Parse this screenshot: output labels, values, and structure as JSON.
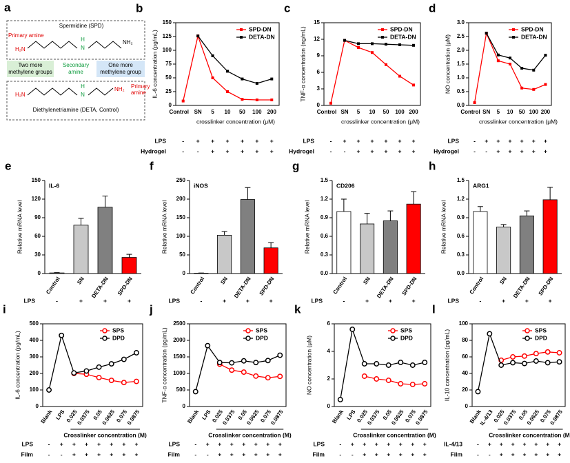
{
  "diagram": {
    "label": "a",
    "spd_title": "Spermidine (SPD)",
    "primary_amine_top": "Primary amine",
    "h2n_top": "H₂N",
    "nh2_top": "NH₂",
    "h_top": "H",
    "n_top": "N",
    "two_more": [
      "Two more",
      "methylene groups"
    ],
    "secondary_amine": [
      "Secondary",
      "amine"
    ],
    "one_more": [
      "One more",
      "methylene group"
    ],
    "h2n_bottom": "H₂N",
    "n_bottom": "N",
    "h_bottom": "H",
    "nh2_bottom": "NH₂",
    "primary_amine_bottom": [
      "Primary",
      "amine"
    ],
    "deta_title": "Diethylenetriamine (DETA, Control)"
  },
  "chart_data": [
    {
      "type": "line",
      "panel": "b",
      "ylabel": "IL-6 concentration (pg/mL)",
      "xlabel": "crosslinker concentration (μM)",
      "marker": "square",
      "legend": "upper right",
      "categories": [
        "Control",
        "SN",
        "5",
        "10",
        "50",
        "100",
        "200"
      ],
      "series": [
        {
          "name": "SPD-DN",
          "color": "#ff0000",
          "values": [
            8,
            126,
            50,
            25,
            11,
            10,
            10
          ]
        },
        {
          "name": "DETA-DN",
          "color": "#000000",
          "values": [
            null,
            126,
            90,
            62,
            48,
            40,
            48
          ]
        }
      ],
      "ylim": [
        0,
        150
      ],
      "yticks": [
        0,
        25,
        50,
        75,
        100,
        125,
        150
      ],
      "rows": [
        {
          "label": "LPS",
          "values": [
            "-",
            "+",
            "+",
            "+",
            "+",
            "+",
            "+"
          ]
        },
        {
          "label": "Hydrogel",
          "values": [
            "-",
            "-",
            "+",
            "+",
            "+",
            "+",
            "+"
          ]
        }
      ]
    },
    {
      "type": "line",
      "panel": "c",
      "ylabel": "TNF-α concentration (ng/mL)",
      "xlabel": "crosslinker concentration (μM)",
      "marker": "square",
      "legend": "upper right",
      "categories": [
        "Control",
        "SN",
        "5",
        "10",
        "50",
        "100",
        "200"
      ],
      "series": [
        {
          "name": "SPD-DN",
          "color": "#ff0000",
          "values": [
            0.4,
            11.8,
            10.5,
            9.6,
            7.4,
            5.3,
            3.7
          ]
        },
        {
          "name": "DETA-DN",
          "color": "#000000",
          "values": [
            null,
            11.8,
            11.2,
            11.2,
            11.1,
            11.0,
            10.9
          ]
        }
      ],
      "ylim": [
        0,
        15
      ],
      "yticks": [
        0,
        3,
        6,
        9,
        12,
        15
      ],
      "rows": [
        {
          "label": "LPS",
          "values": [
            "-",
            "+",
            "+",
            "+",
            "+",
            "+",
            "+"
          ]
        },
        {
          "label": "Hydrogel",
          "values": [
            "-",
            "-",
            "+",
            "+",
            "+",
            "+",
            "+"
          ]
        }
      ]
    },
    {
      "type": "line",
      "panel": "d",
      "ylabel": "NO concentration (μM)",
      "xlabel": "crosslinker concentration (μM)",
      "marker": "square",
      "legend": "upper right",
      "categories": [
        "Control",
        "SN",
        "5",
        "10",
        "50",
        "100",
        "200"
      ],
      "series": [
        {
          "name": "SPD-DN",
          "color": "#ff0000",
          "values": [
            0.1,
            2.62,
            1.62,
            1.5,
            0.63,
            0.58,
            0.76
          ]
        },
        {
          "name": "DETA-DN",
          "color": "#000000",
          "values": [
            null,
            2.62,
            1.83,
            1.72,
            1.35,
            1.28,
            1.82
          ]
        }
      ],
      "ylim": [
        0,
        3
      ],
      "yticks": [
        {
          "value": 0,
          "label": "0.0"
        },
        0.5,
        {
          "value": 1,
          "label": "1.0"
        },
        1.5,
        {
          "value": 2,
          "label": "2.0"
        },
        2.5,
        {
          "value": 3,
          "label": "3.0"
        }
      ],
      "rows": [
        {
          "label": "LPS",
          "values": [
            "-",
            "+",
            "+",
            "+",
            "+",
            "+",
            "+"
          ]
        },
        {
          "label": "Hydrogel",
          "values": [
            "-",
            "-",
            "+",
            "+",
            "+",
            "+",
            "+"
          ]
        }
      ]
    },
    {
      "type": "bar",
      "panel": "e",
      "title": "IL-6",
      "ylabel": "Relative mRNA level",
      "categories": [
        "Control",
        "SN",
        "DETA-DN",
        "SPD-DN"
      ],
      "values": [
        1,
        78,
        107,
        26
      ],
      "errors": [
        0.5,
        11,
        18,
        5
      ],
      "colors": [
        "#ffffff",
        "#c8c8c8",
        "#808080",
        "#ff0000"
      ],
      "ylim": [
        0,
        150
      ],
      "yticks": [
        0,
        30,
        60,
        90,
        120,
        150
      ],
      "rows": [
        {
          "label": "LPS",
          "values": [
            "-",
            "+",
            "+",
            "+"
          ]
        }
      ]
    },
    {
      "type": "bar",
      "panel": "f",
      "title": "iNOS",
      "ylabel": "Relative mRNA level",
      "categories": [
        "Control",
        "SN",
        "DETA-DN",
        "SPD-DN"
      ],
      "values": [
        1,
        103,
        199,
        69
      ],
      "errors": [
        0.5,
        10,
        32,
        14
      ],
      "colors": [
        "#ffffff",
        "#c8c8c8",
        "#808080",
        "#ff0000"
      ],
      "ylim": [
        0,
        250
      ],
      "yticks": [
        0,
        50,
        100,
        150,
        200,
        250
      ],
      "rows": [
        {
          "label": "LPS",
          "values": [
            "-",
            "+",
            "+",
            "+"
          ]
        }
      ]
    },
    {
      "type": "bar",
      "panel": "g",
      "title": "CD206",
      "ylabel": "Relative mRNA level",
      "categories": [
        "Control",
        "SN",
        "DETA-DN",
        "SPD-DN"
      ],
      "values": [
        1.0,
        0.8,
        0.85,
        1.12
      ],
      "errors": [
        0.2,
        0.17,
        0.16,
        0.2
      ],
      "colors": [
        "#ffffff",
        "#c8c8c8",
        "#808080",
        "#ff0000"
      ],
      "ylim": [
        0,
        1.5
      ],
      "yticks": [
        {
          "value": 0,
          "label": "0.0"
        },
        0.3,
        0.6,
        0.9,
        1.2,
        1.5
      ],
      "rows": [
        {
          "label": "LPS",
          "values": [
            "-",
            "+",
            "+",
            "+"
          ]
        }
      ]
    },
    {
      "type": "bar",
      "panel": "h",
      "title": "ARG1",
      "ylabel": "Relative mRNA level",
      "categories": [
        "Control",
        "SN",
        "DETA-DN",
        "SPD-DN"
      ],
      "values": [
        1.0,
        0.75,
        0.93,
        1.19
      ],
      "errors": [
        0.08,
        0.04,
        0.08,
        0.2
      ],
      "colors": [
        "#ffffff",
        "#c8c8c8",
        "#808080",
        "#ff0000"
      ],
      "ylim": [
        0,
        1.5
      ],
      "yticks": [
        {
          "value": 0,
          "label": "0.0"
        },
        0.3,
        0.6,
        0.9,
        1.2,
        1.5
      ],
      "rows": [
        {
          "label": "LPS",
          "values": [
            "-",
            "+",
            "+",
            "+"
          ]
        }
      ]
    },
    {
      "type": "line",
      "panel": "i",
      "ylabel": "IL-6 concentration (pg/mL)",
      "xlabel": "Crosslinker concentration (M)",
      "marker": "circle",
      "legend": "upper right",
      "categories": [
        "Blank",
        "LPS",
        "0.025",
        "0.0375",
        "0.05",
        "0.0625",
        "0.075",
        "0.0875"
      ],
      "series": [
        {
          "name": "SPS",
          "color": "#ff0000",
          "values": [
            null,
            null,
            200,
            195,
            175,
            158,
            145,
            152
          ]
        },
        {
          "name": "DPD",
          "color": "#000000",
          "values": [
            100,
            430,
            203,
            215,
            238,
            258,
            285,
            325
          ]
        }
      ],
      "ylim": [
        0,
        500
      ],
      "yticks": [
        0,
        100,
        200,
        300,
        400,
        500
      ],
      "rows": [
        {
          "label": "LPS",
          "values": [
            "-",
            "+",
            "+",
            "+",
            "+",
            "+",
            "+",
            "+"
          ]
        },
        {
          "label": "Film",
          "values": [
            "-",
            "-",
            "+",
            "+",
            "+",
            "+",
            "+",
            "+"
          ]
        }
      ]
    },
    {
      "type": "line",
      "panel": "j",
      "ylabel": "TNF-α concentration (pg/mL)",
      "xlabel": "Crosslinker concentration (M)",
      "marker": "circle",
      "legend": "upper right",
      "categories": [
        "Blank",
        "LPS",
        "0.025",
        "0.0375",
        "0.05",
        "0.0625",
        "0.075",
        "0.0875"
      ],
      "series": [
        {
          "name": "SPS",
          "color": "#ff0000",
          "values": [
            null,
            null,
            1280,
            1100,
            1040,
            920,
            870,
            910
          ]
        },
        {
          "name": "DPD",
          "color": "#000000",
          "values": [
            450,
            1840,
            1330,
            1320,
            1380,
            1330,
            1390,
            1550
          ]
        }
      ],
      "ylim": [
        0,
        2500
      ],
      "yticks": [
        0,
        500,
        1000,
        1500,
        2000,
        2500
      ],
      "rows": [
        {
          "label": "LPS",
          "values": [
            "-",
            "+",
            "+",
            "+",
            "+",
            "+",
            "+",
            "+"
          ]
        },
        {
          "label": "Film",
          "values": [
            "-",
            "-",
            "+",
            "+",
            "+",
            "+",
            "+",
            "+"
          ]
        }
      ]
    },
    {
      "type": "line",
      "panel": "k",
      "ylabel": "NO concentration (μM)",
      "xlabel": "Crosslinker concentration (M)",
      "marker": "circle",
      "legend": "upper right",
      "categories": [
        "Blank",
        "LPS",
        "0.025",
        "0.0375",
        "0.05",
        "0.0625",
        "0.075",
        "0.0875"
      ],
      "series": [
        {
          "name": "SPS",
          "color": "#ff0000",
          "values": [
            null,
            null,
            2.2,
            2.0,
            1.9,
            1.65,
            1.6,
            1.65
          ]
        },
        {
          "name": "DPD",
          "color": "#000000",
          "values": [
            0.5,
            5.6,
            3.1,
            3.1,
            3.0,
            3.2,
            3.0,
            3.2
          ]
        }
      ],
      "ylim": [
        0,
        6
      ],
      "yticks": [
        0,
        2,
        4,
        6
      ],
      "rows": [
        {
          "label": "LPS",
          "values": [
            "-",
            "+",
            "+",
            "+",
            "+",
            "+",
            "+",
            "+"
          ]
        },
        {
          "label": "Film",
          "values": [
            "-",
            "-",
            "+",
            "+",
            "+",
            "+",
            "+",
            "+"
          ]
        }
      ]
    },
    {
      "type": "line",
      "panel": "l",
      "ylabel": "IL-10 concentration (pg/mL)",
      "xlabel": "Crosslinker concentration (M)",
      "marker": "circle",
      "legend": "upper right",
      "categories": [
        "Blank",
        "IL-4/13",
        "0.025",
        "0.0375",
        "0.05",
        "0.0625",
        "0.075",
        "0.0875"
      ],
      "series": [
        {
          "name": "SPS",
          "color": "#ff0000",
          "values": [
            null,
            null,
            56,
            60,
            61,
            64,
            66,
            65
          ]
        },
        {
          "name": "DPD",
          "color": "#000000",
          "values": [
            18,
            88,
            50,
            53,
            52,
            55,
            53,
            54
          ]
        }
      ],
      "ylim": [
        0,
        100
      ],
      "yticks": [
        0,
        20,
        40,
        60,
        80,
        100
      ],
      "rows": [
        {
          "label": "IL-4/13",
          "values": [
            "-",
            "+",
            "+",
            "+",
            "+",
            "+",
            "+",
            "+"
          ]
        },
        {
          "label": "Film",
          "values": [
            "-",
            "-",
            "+",
            "+",
            "+",
            "+",
            "+",
            "+"
          ]
        }
      ]
    }
  ]
}
